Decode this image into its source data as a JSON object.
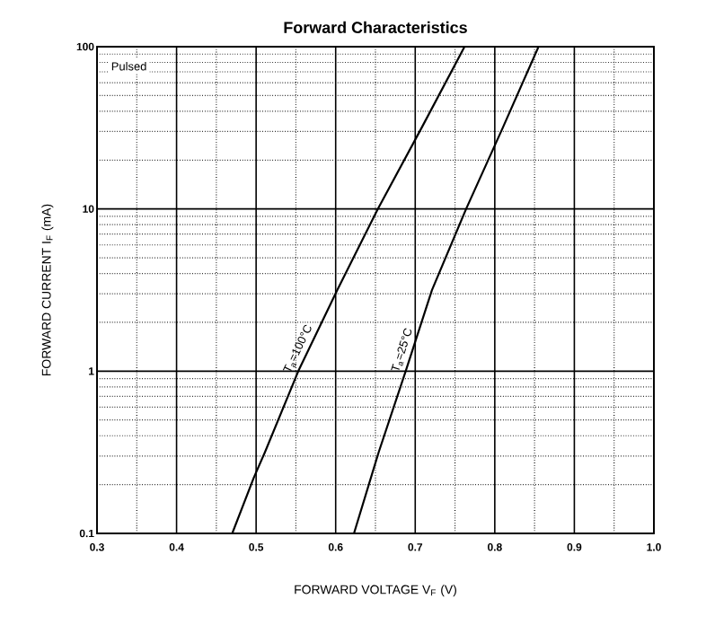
{
  "chart_data": {
    "type": "line",
    "title": "Forward    Characteristics",
    "xlabel": "FORWARD VOLTAGE    V$_{F}$    (V)",
    "ylabel": "FORWARD CURRENT    I$_{F}$    (mA)",
    "annotations": [
      "Pulsed"
    ],
    "series": [
      {
        "name": "T$_{a}$=100°C",
        "color": "#000000",
        "x": [
          0.47,
          0.497,
          0.511,
          0.553,
          0.602,
          0.653,
          0.708,
          0.762
        ],
        "values": [
          0.1,
          0.22,
          0.316,
          1,
          3.16,
          10,
          31.6,
          100
        ]
      },
      {
        "name": "T$_{a}$=25°C",
        "color": "#000000",
        "x": [
          0.623,
          0.654,
          0.688,
          0.721,
          0.764,
          0.81,
          0.855
        ],
        "values": [
          0.1,
          0.316,
          1,
          3.16,
          10,
          31.6,
          100
        ]
      }
    ],
    "xlim": [
      0.3,
      1.0
    ],
    "ylim": [
      0.1,
      100
    ],
    "xticks": [
      0.3,
      0.4,
      0.5,
      0.6,
      0.7,
      0.8,
      0.9,
      {
        "value": 1,
        "label": "1.0"
      }
    ],
    "yticks": [
      0.1,
      1,
      10,
      100
    ],
    "log": "y",
    "grid": true,
    "marker": "none",
    "line_style": "solid"
  }
}
